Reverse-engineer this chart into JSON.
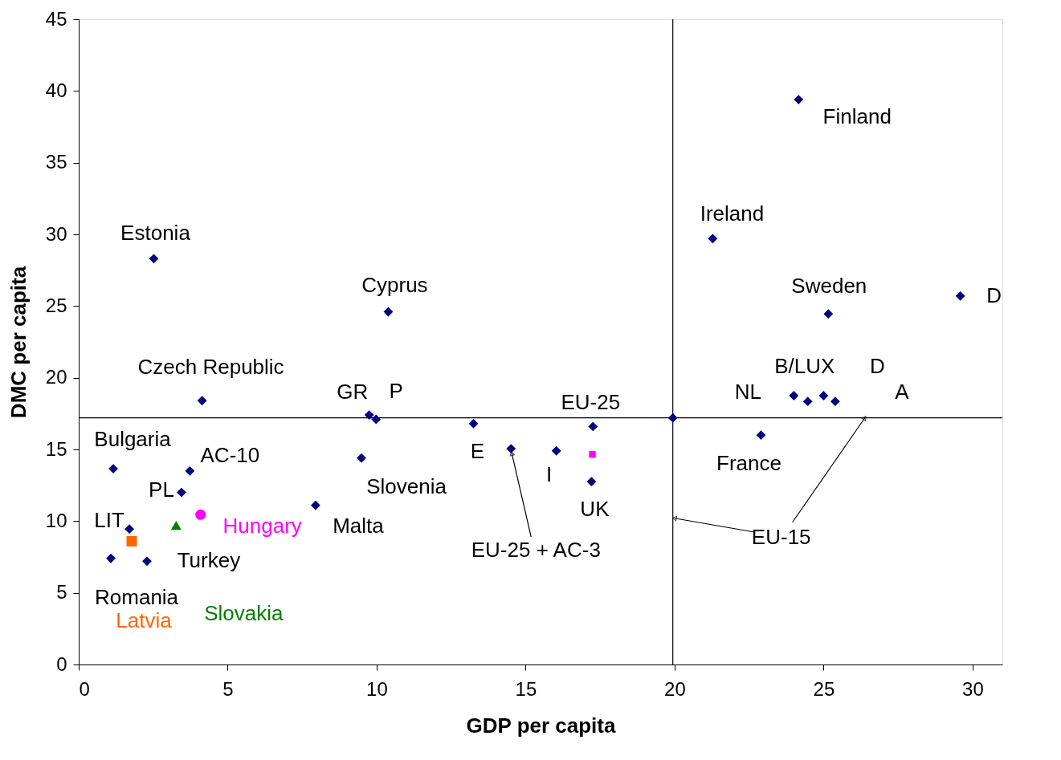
{
  "chart_data": {
    "type": "scatter",
    "xlabel": "GDP per capita",
    "ylabel": "DMC per capita",
    "xlim": [
      0,
      31
    ],
    "xticks": [
      0,
      5,
      10,
      15,
      20,
      25,
      30
    ],
    "ylim": [
      0,
      45
    ],
    "yticks": [
      0,
      5,
      10,
      15,
      20,
      25,
      30,
      35,
      40,
      45
    ],
    "grid": false,
    "series": [
      {
        "color": "#000080",
        "marker": "diamond",
        "x": [
          2.52,
          4.14,
          1.16,
          3.73,
          3.45,
          1.7,
          1.08,
          2.29,
          7.95,
          9.49,
          9.75,
          9.98,
          10.39,
          13.25,
          14.51,
          16.03,
          17.26,
          17.21,
          19.94,
          21.28,
          24.16,
          22.9,
          24.0,
          24.47,
          25.0,
          25.39,
          25.16,
          29.59
        ],
        "values": [
          28.3,
          18.4,
          13.65,
          13.5,
          12.0,
          9.45,
          7.4,
          7.2,
          11.1,
          14.4,
          17.4,
          17.1,
          24.6,
          16.8,
          15.05,
          14.9,
          16.6,
          12.75,
          17.2,
          29.7,
          39.4,
          16.0,
          18.75,
          18.35,
          18.75,
          18.35,
          24.45,
          25.7
        ]
      },
      {
        "name": "Latvia",
        "color": "#ff6600",
        "marker": "square",
        "x": [
          1.78
        ],
        "values": [
          8.6
        ]
      },
      {
        "name": "Slovakia",
        "color": "#008000",
        "marker": "triangle",
        "x": [
          3.27
        ],
        "values": [
          9.7
        ]
      },
      {
        "name": "Hungary",
        "color": "#ff00ff",
        "marker": "circle",
        "x": [
          4.09
        ],
        "values": [
          10.45
        ]
      },
      {
        "color": "#ff00ff",
        "marker": "square",
        "x": [
          17.24
        ],
        "values": [
          14.65
        ]
      }
    ],
    "ref_lines": [
      {
        "axis": "x",
        "value": 19.94,
        "color": "#000000"
      },
      {
        "axis": "y",
        "value": 17.2,
        "color": "#000000"
      }
    ],
    "annotations": [
      {
        "text": "Estonia",
        "x": 2.52,
        "y": 28.3
      },
      {
        "text": "Czech Republic",
        "x": 4.14,
        "y": 18.4
      },
      {
        "text": "Bulgaria",
        "x": 1.16,
        "y": 13.65
      },
      {
        "text": "AC-10",
        "x": 3.73,
        "y": 13.5
      },
      {
        "text": "PL",
        "x": 3.45,
        "y": 12.0
      },
      {
        "text": "LIT",
        "x": 1.7,
        "y": 9.45
      },
      {
        "text": "Romania",
        "x": 1.08,
        "y": 7.4
      },
      {
        "text": "Turkey",
        "x": 2.29,
        "y": 7.2
      },
      {
        "text": "Malta",
        "x": 7.95,
        "y": 11.1
      },
      {
        "text": "Slovenia",
        "x": 9.49,
        "y": 14.4
      },
      {
        "text": "GR",
        "x": 9.75,
        "y": 17.4
      },
      {
        "text": "P",
        "x": 9.98,
        "y": 17.1
      },
      {
        "text": "Cyprus",
        "x": 10.39,
        "y": 24.6
      },
      {
        "text": "E",
        "x": 13.25,
        "y": 16.8
      },
      {
        "text": "EU-25 + AC-3",
        "x": 14.51,
        "y": 15.05
      },
      {
        "text": "I",
        "x": 16.03,
        "y": 14.9
      },
      {
        "text": "EU-25",
        "x": 17.26,
        "y": 16.6
      },
      {
        "text": "UK",
        "x": 17.21,
        "y": 12.75
      },
      {
        "text": "EU-15",
        "x": 19.94,
        "y": 10.2
      },
      {
        "text": "Ireland",
        "x": 21.28,
        "y": 29.7
      },
      {
        "text": "Finland",
        "x": 24.16,
        "y": 39.4
      },
      {
        "text": "France",
        "x": 22.9,
        "y": 16.0
      },
      {
        "text": "NL",
        "x": 24.0,
        "y": 18.75
      },
      {
        "text": "B/LUX",
        "x": 24.47,
        "y": 18.35
      },
      {
        "text": "D",
        "x": 25.0,
        "y": 18.75
      },
      {
        "text": "A",
        "x": 25.39,
        "y": 18.35
      },
      {
        "text": "Sweden",
        "x": 25.16,
        "y": 24.45
      },
      {
        "text": "D",
        "x": 29.59,
        "y": 25.7
      }
    ]
  }
}
